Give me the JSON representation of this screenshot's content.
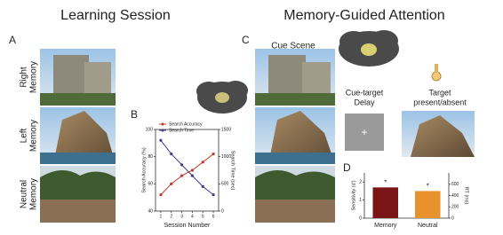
{
  "header": {
    "left_title": "Learning Session",
    "right_title": "Memory-Guided Attention"
  },
  "panel_labels": [
    "A",
    "B",
    "C",
    "D"
  ],
  "row_labels": [
    [
      "Right",
      "Memory"
    ],
    [
      "Left",
      "Memory"
    ],
    [
      "Neutral",
      "Memory"
    ]
  ],
  "cue_scene": "Cue Scene",
  "fixation": "+",
  "delay_label": [
    "Cue-target",
    "Delay"
  ],
  "target_label": [
    "Target",
    "present/absent"
  ],
  "chart_data": [
    {
      "type": "line",
      "x_label": "Session Number",
      "y_label": "Search Accuracy (%)",
      "y2_label": "Search Time (sec)",
      "x": [
        1,
        2,
        3,
        4,
        5,
        6
      ],
      "xlim": [
        0.5,
        6.5
      ],
      "xticks": [
        1,
        2,
        3,
        4,
        5,
        6
      ],
      "ylim": [
        40,
        100
      ],
      "yticks": [
        40,
        60,
        80,
        100
      ],
      "y2lim": [
        0,
        1500
      ],
      "y2ticks": [
        0,
        500,
        1000,
        1500
      ],
      "legend": "top-left",
      "series": [
        {
          "name": "Search Accuracy",
          "color": "#c0392b",
          "values": [
            52,
            60,
            66,
            70,
            76,
            82
          ]
        },
        {
          "name": "Search Time",
          "color": "#4a3a8c",
          "axis": "y2",
          "values": [
            1300,
            1050,
            850,
            650,
            450,
            300
          ]
        }
      ]
    },
    {
      "type": "bar",
      "y_label": "Sensitivity (d')",
      "y2_label": "RT (ms)",
      "categories": [
        "Memory",
        "Neutral"
      ],
      "values": [
        1.7,
        1.5
      ],
      "colors": [
        "#7b1416",
        "#e8922e"
      ],
      "significance": [
        "*",
        "*"
      ],
      "ylim": [
        0,
        2.5
      ],
      "yticks": [
        0,
        1,
        2
      ],
      "y2lim": [
        0,
        800
      ],
      "y2ticks": [
        0,
        200,
        400,
        600
      ]
    }
  ]
}
